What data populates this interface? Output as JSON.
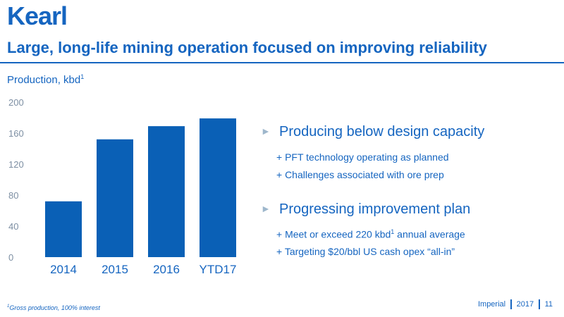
{
  "header": {
    "title": "Kearl",
    "subtitle": "Large, long-life mining operation focused on improving reliability"
  },
  "chart_data": {
    "type": "bar",
    "ylabel_text": "Production, kbd",
    "ylabel_sup": "1",
    "categories": [
      "2014",
      "2015",
      "2016",
      "YTD17"
    ],
    "values": [
      72,
      152,
      169,
      179
    ],
    "ylim": [
      0,
      200
    ],
    "yticks": [
      "200",
      "160",
      "120",
      "80",
      "40",
      "0"
    ],
    "ytick_values": [
      200,
      160,
      120,
      80,
      40,
      0
    ],
    "bar_color": "#0a60b6",
    "grid": false
  },
  "bullets": [
    {
      "heading": "Producing below design capacity",
      "items": [
        {
          "pre": "+ PFT technology operating as planned",
          "sup": "",
          "post": ""
        },
        {
          "pre": "+ Challenges associated with ore prep",
          "sup": "",
          "post": ""
        }
      ]
    },
    {
      "heading": "Progressing improvement plan",
      "items": [
        {
          "pre": "+ Meet or exceed 220 kbd",
          "sup": "1",
          "post": " annual average"
        },
        {
          "pre": "+ Targeting $20/bbl US cash opex “all-in”",
          "sup": "",
          "post": ""
        }
      ]
    }
  ],
  "footnote": {
    "sup": "1",
    "text": "Gross production, 100% interest"
  },
  "footer": {
    "company": "Imperial",
    "year": "2017",
    "page": "11"
  },
  "colors": {
    "brand": "#1565c0",
    "bar": "#0a60b6",
    "arrow": "#9eb7cc"
  }
}
